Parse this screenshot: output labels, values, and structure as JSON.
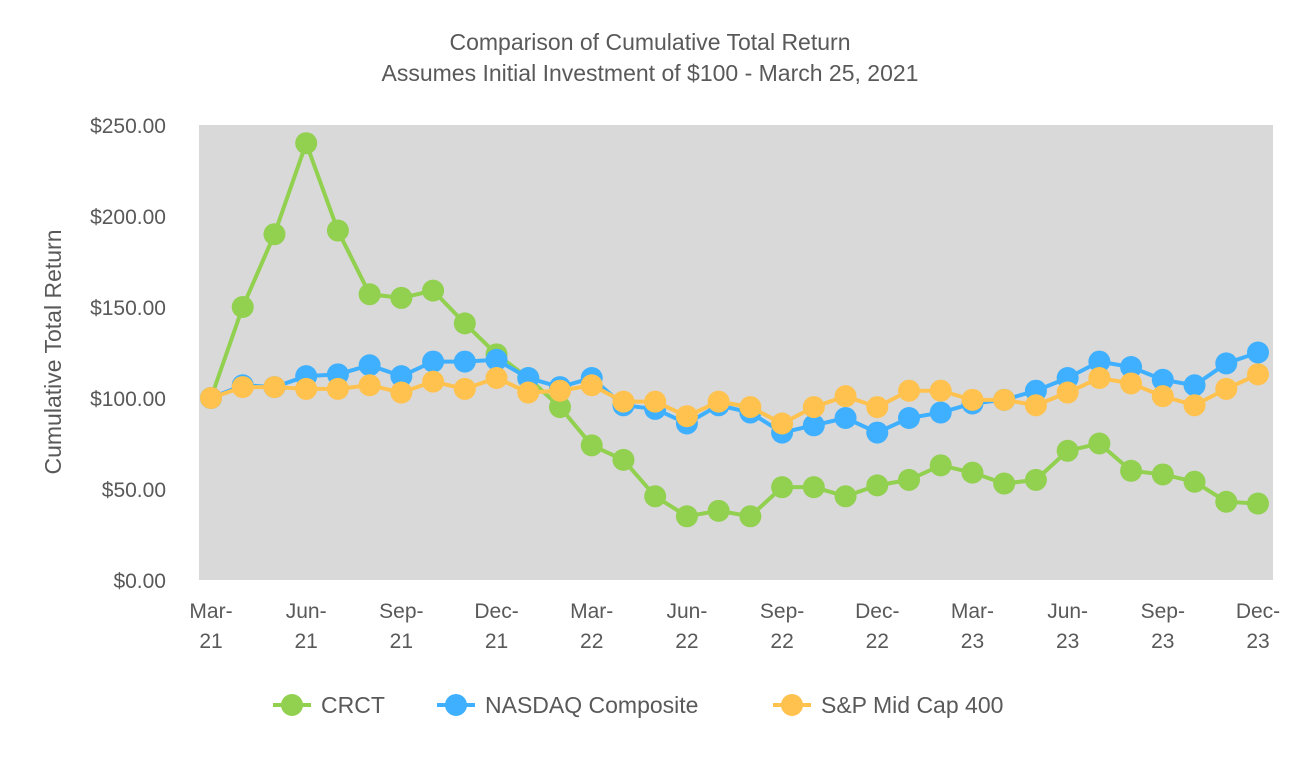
{
  "chart_data": {
    "type": "line",
    "title": "Comparison of Cumulative Total Return",
    "subtitle": "Assumes Initial Investment of $100 - March 25, 2021",
    "xlabel": "",
    "ylabel": "Cumulative Total Return",
    "ylim": [
      0,
      250
    ],
    "yticks": [
      "$0.00",
      "$50.00",
      "$100.00",
      "$150.00",
      "$200.00",
      "$250.00"
    ],
    "ytick_values": [
      0,
      50,
      100,
      150,
      200,
      250
    ],
    "x_count": 34,
    "xtick_labels": [
      {
        "index": 0,
        "label": "Mar-21"
      },
      {
        "index": 3,
        "label": "Jun-21"
      },
      {
        "index": 6,
        "label": "Sep-21"
      },
      {
        "index": 9,
        "label": "Dec-21"
      },
      {
        "index": 12,
        "label": "Mar-22"
      },
      {
        "index": 15,
        "label": "Jun-22"
      },
      {
        "index": 18,
        "label": "Sep-22"
      },
      {
        "index": 21,
        "label": "Dec-22"
      },
      {
        "index": 24,
        "label": "Mar-23"
      },
      {
        "index": 27,
        "label": "Jun-23"
      },
      {
        "index": 30,
        "label": "Sep-23"
      },
      {
        "index": 33,
        "label": "Dec-23"
      }
    ],
    "grid": false,
    "background": "#d9d9d9",
    "legend_position": "bottom",
    "series": [
      {
        "name": "CRCT",
        "color": "#92d050",
        "values": [
          100,
          150,
          190,
          240,
          192,
          157,
          155,
          159,
          141,
          124,
          111,
          95,
          74,
          66,
          46,
          35,
          38,
          35,
          51,
          51,
          46,
          52,
          55,
          63,
          59,
          53,
          55,
          71,
          75,
          60,
          58,
          54,
          43,
          42
        ]
      },
      {
        "name": "NASDAQ Composite",
        "color": "#3fb0ff",
        "values": [
          100,
          107,
          106,
          112,
          113,
          118,
          112,
          120,
          120,
          121,
          111,
          106,
          111,
          96,
          94,
          86,
          96,
          92,
          81,
          85,
          89,
          81,
          89,
          92,
          97,
          99,
          104,
          111,
          120,
          117,
          110,
          107,
          119,
          125
        ]
      },
      {
        "name": "S&P Mid Cap 400",
        "color": "#ffc24f",
        "values": [
          100,
          106,
          106,
          105,
          105,
          107,
          103,
          109,
          105,
          111,
          103,
          104,
          107,
          98,
          98,
          90,
          98,
          95,
          86,
          95,
          101,
          95,
          104,
          104,
          99,
          99,
          96,
          103,
          111,
          108,
          101,
          96,
          105,
          113
        ]
      }
    ]
  }
}
